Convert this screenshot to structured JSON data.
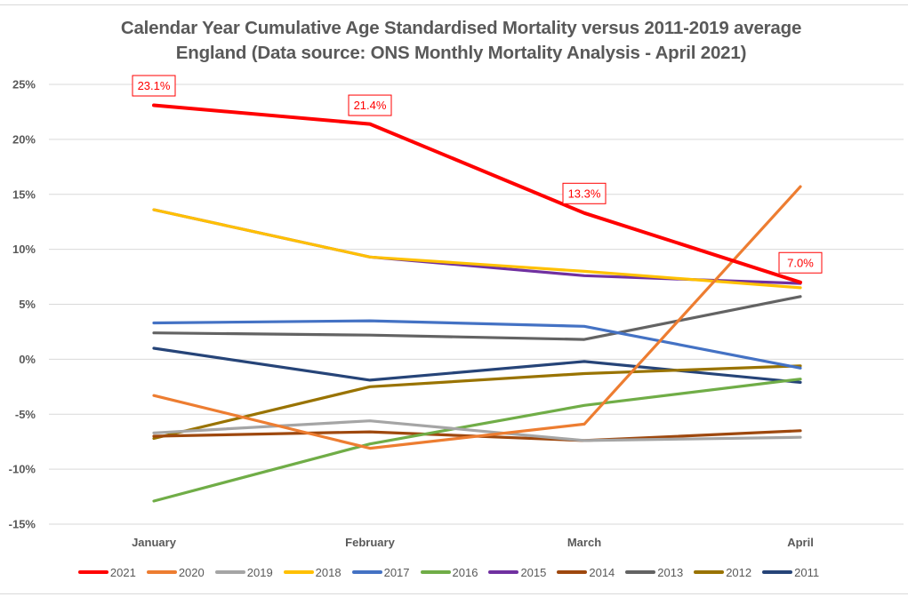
{
  "chart_data": {
    "type": "line",
    "title": "Calendar Year Cumulative Age Standardised Mortality versus 2011-2019 average",
    "subtitle": "England (Data source: ONS Monthly Mortality Analysis - April 2021)",
    "xlabel": "",
    "ylabel": "",
    "categories": [
      "January",
      "February",
      "March",
      "April"
    ],
    "ylim": [
      -15,
      25
    ],
    "yticks": [
      25,
      20,
      15,
      10,
      5,
      0,
      -5,
      -10,
      -15
    ],
    "ytick_labels": [
      "25%",
      "20%",
      "15%",
      "10%",
      "5%",
      "0%",
      "-5%",
      "-10%",
      "-15%"
    ],
    "grid": true,
    "legend_position": "bottom",
    "series": [
      {
        "name": "2021",
        "color": "#ff0000",
        "values": [
          23.1,
          21.4,
          13.3,
          7.0
        ],
        "data_labels": [
          "23.1%",
          "21.4%",
          "13.3%",
          "7.0%"
        ]
      },
      {
        "name": "2020",
        "color": "#ed7d31",
        "values": [
          -3.3,
          -8.1,
          -5.9,
          15.7
        ]
      },
      {
        "name": "2019",
        "color": "#a5a5a5",
        "values": [
          -6.7,
          -5.6,
          -7.4,
          -7.1
        ]
      },
      {
        "name": "2018",
        "color": "#ffc000",
        "values": [
          13.6,
          9.3,
          8.0,
          6.5
        ]
      },
      {
        "name": "2017",
        "color": "#4472c4",
        "values": [
          3.3,
          3.5,
          3.0,
          -0.8
        ]
      },
      {
        "name": "2016",
        "color": "#70ad47",
        "values": [
          -12.9,
          -7.7,
          -4.2,
          -1.8
        ]
      },
      {
        "name": "2015",
        "color": "#7030a0",
        "values": [
          13.6,
          9.3,
          7.6,
          6.9
        ]
      },
      {
        "name": "2014",
        "color": "#9e480e",
        "values": [
          -7.0,
          -6.6,
          -7.4,
          -6.5
        ]
      },
      {
        "name": "2013",
        "color": "#636363",
        "values": [
          2.4,
          2.2,
          1.8,
          5.7
        ]
      },
      {
        "name": "2012",
        "color": "#997300",
        "values": [
          -7.2,
          -2.5,
          -1.3,
          -0.6
        ]
      },
      {
        "name": "2011",
        "color": "#264478",
        "values": [
          1.0,
          -1.9,
          -0.2,
          -2.1
        ]
      }
    ]
  }
}
